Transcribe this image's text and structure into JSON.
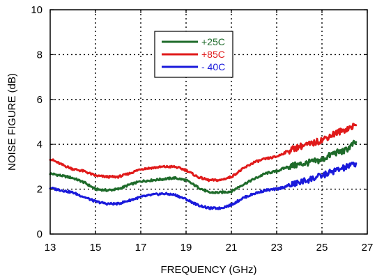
{
  "chart_data": {
    "type": "line",
    "title": "",
    "xlabel": "FREQUENCY (GHz)",
    "ylabel": "NOISE FIGURE (dB)",
    "xlim": [
      13,
      27
    ],
    "ylim": [
      0,
      10
    ],
    "xticks": [
      13,
      15,
      17,
      19,
      21,
      23,
      25,
      27
    ],
    "yticks": [
      0,
      2,
      4,
      6,
      8,
      10
    ],
    "grid": true,
    "legend_position": "top-center",
    "series": [
      {
        "name": "+25C",
        "color": "#1e6b2a",
        "points": [
          [
            13.0,
            2.7
          ],
          [
            13.5,
            2.6
          ],
          [
            14.0,
            2.5
          ],
          [
            14.5,
            2.3
          ],
          [
            15.0,
            2.0
          ],
          [
            15.5,
            1.95
          ],
          [
            16.0,
            2.0
          ],
          [
            16.5,
            2.2
          ],
          [
            17.0,
            2.35
          ],
          [
            17.5,
            2.4
          ],
          [
            18.0,
            2.45
          ],
          [
            18.5,
            2.5
          ],
          [
            19.0,
            2.4
          ],
          [
            19.5,
            2.1
          ],
          [
            20.0,
            1.85
          ],
          [
            20.5,
            1.85
          ],
          [
            21.0,
            1.9
          ],
          [
            21.5,
            2.2
          ],
          [
            22.0,
            2.45
          ],
          [
            22.5,
            2.7
          ],
          [
            23.0,
            2.8
          ],
          [
            23.5,
            3.0
          ],
          [
            24.0,
            3.1
          ],
          [
            24.5,
            3.2
          ],
          [
            25.0,
            3.3
          ],
          [
            25.5,
            3.6
          ],
          [
            26.0,
            3.7
          ],
          [
            26.5,
            4.1
          ]
        ]
      },
      {
        "name": "+85C",
        "color": "#e01a1a",
        "points": [
          [
            13.0,
            3.35
          ],
          [
            13.5,
            3.1
          ],
          [
            14.0,
            2.9
          ],
          [
            14.5,
            2.8
          ],
          [
            15.0,
            2.6
          ],
          [
            15.5,
            2.55
          ],
          [
            16.0,
            2.55
          ],
          [
            16.5,
            2.7
          ],
          [
            17.0,
            2.9
          ],
          [
            17.5,
            2.95
          ],
          [
            18.0,
            3.0
          ],
          [
            18.5,
            3.0
          ],
          [
            19.0,
            2.85
          ],
          [
            19.5,
            2.55
          ],
          [
            20.0,
            2.4
          ],
          [
            20.5,
            2.4
          ],
          [
            21.0,
            2.55
          ],
          [
            21.5,
            2.9
          ],
          [
            22.0,
            3.2
          ],
          [
            22.5,
            3.35
          ],
          [
            23.0,
            3.45
          ],
          [
            23.5,
            3.7
          ],
          [
            24.0,
            3.9
          ],
          [
            24.5,
            4.0
          ],
          [
            25.0,
            4.2
          ],
          [
            25.5,
            4.45
          ],
          [
            26.0,
            4.65
          ],
          [
            26.5,
            4.85
          ]
        ]
      },
      {
        "name": "- 40C",
        "color": "#1a1adb",
        "points": [
          [
            13.0,
            2.05
          ],
          [
            13.5,
            1.95
          ],
          [
            14.0,
            1.85
          ],
          [
            14.5,
            1.65
          ],
          [
            15.0,
            1.45
          ],
          [
            15.5,
            1.35
          ],
          [
            16.0,
            1.35
          ],
          [
            16.5,
            1.5
          ],
          [
            17.0,
            1.65
          ],
          [
            17.5,
            1.75
          ],
          [
            18.0,
            1.8
          ],
          [
            18.5,
            1.75
          ],
          [
            19.0,
            1.55
          ],
          [
            19.5,
            1.3
          ],
          [
            20.0,
            1.15
          ],
          [
            20.5,
            1.15
          ],
          [
            21.0,
            1.3
          ],
          [
            21.5,
            1.6
          ],
          [
            22.0,
            1.8
          ],
          [
            22.5,
            1.95
          ],
          [
            23.0,
            2.0
          ],
          [
            23.5,
            2.15
          ],
          [
            24.0,
            2.3
          ],
          [
            24.5,
            2.45
          ],
          [
            25.0,
            2.6
          ],
          [
            25.5,
            2.8
          ],
          [
            26.0,
            2.95
          ],
          [
            26.5,
            3.15
          ]
        ]
      }
    ]
  }
}
